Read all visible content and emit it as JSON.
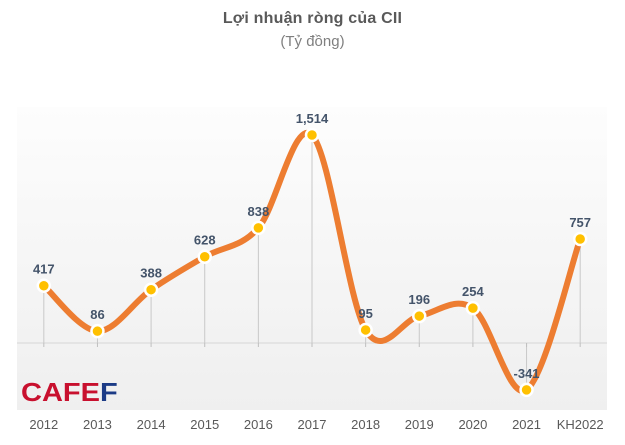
{
  "chart_data": {
    "type": "line",
    "title": "Lợi nhuận ròng của CII",
    "subtitle": "(Tỷ đồng)",
    "categories": [
      "2012",
      "2013",
      "2014",
      "2015",
      "2016",
      "2017",
      "2018",
      "2019",
      "2020",
      "2021",
      "KH2022"
    ],
    "values": [
      417,
      86,
      388,
      628,
      838,
      1514,
      95,
      196,
      254,
      -341,
      757
    ],
    "value_labels": [
      "417",
      "86",
      "388",
      "628",
      "838",
      "1,514",
      "95",
      "196",
      "254",
      "-341",
      "757"
    ],
    "ylim": [
      -490,
      1720
    ],
    "grid": "off",
    "legend": "none",
    "colors": {
      "line": "#ED7D31",
      "marker_fill": "#FFC000",
      "marker_ring": "#FFFFFF",
      "value_label": "#44546A",
      "axis_label": "#595959",
      "baseline": "#D6D6D6",
      "dropline": "#C8C8C8",
      "tick": "#BFBFBF"
    }
  },
  "watermark": {
    "part1": "CAFE",
    "part2": "F",
    "color1": "#C8102E",
    "color2": "#1C3B86"
  }
}
